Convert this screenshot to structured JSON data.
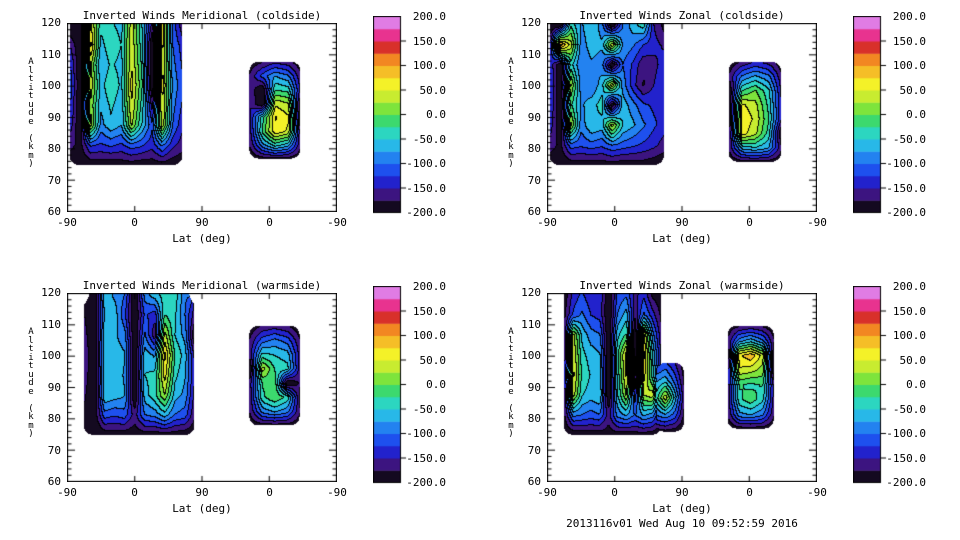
{
  "page": {
    "background": "#ffffff",
    "caption": "2013116v01 Wed Aug 10 09:52:59 2016"
  },
  "axis": {
    "x_label": "Lat (deg)",
    "y_label": "Altitude (km)",
    "x_tick_labels": [
      "-90",
      "0",
      "90",
      "0",
      "-90"
    ],
    "y_tick_labels": [
      "120",
      "110",
      "100",
      "90",
      "80",
      "70",
      "60"
    ],
    "alt_min": 60,
    "alt_max": 120
  },
  "colorbar": {
    "min": -200,
    "max": 200,
    "band_step": 25,
    "tick_labels": [
      "200.0",
      "150.0",
      "100.0",
      "50.0",
      "0.0",
      "-50.0",
      "-100.0",
      "-150.0",
      "-200.0"
    ],
    "colors_low_to_high": [
      "#140a20",
      "#3c1480",
      "#2222cc",
      "#1e50ee",
      "#2382f0",
      "#28b8e8",
      "#2cd6c0",
      "#3cd96e",
      "#7ee43c",
      "#c8ec30",
      "#f4f128",
      "#f5be27",
      "#f28722",
      "#d8302a",
      "#e8338f",
      "#e07ce4"
    ]
  },
  "chart_data": [
    {
      "type": "contour-filled",
      "title": "Inverted Winds Meridional (coldside)",
      "position": "top-left",
      "xlabel": "Lat (deg)",
      "ylabel": "Altitude (km)",
      "x_ticks": [
        "-90",
        "0",
        "90",
        "0",
        "-90"
      ],
      "y_range": [
        60,
        120
      ],
      "value_range": [
        -200,
        200
      ],
      "level_step": 25,
      "blobs": [
        {
          "x0": 0.004,
          "x1": 0.425,
          "alt_top": 120,
          "alt_bottom": 75,
          "values": [
            [
              -205,
              -205,
              55,
              -40,
              -45,
              -60,
              40,
              -50,
              -160,
              70,
              -110,
              -170
            ],
            [
              -150,
              -205,
              85,
              -60,
              -30,
              -50,
              45,
              -40,
              -205,
              60,
              -100,
              -140
            ],
            [
              -120,
              -205,
              30,
              -75,
              -45,
              -60,
              50,
              -30,
              -205,
              55,
              -90,
              -130
            ],
            [
              -110,
              -205,
              45,
              -60,
              -30,
              -55,
              60,
              -20,
              -205,
              62,
              -80,
              -120
            ],
            [
              -120,
              -205,
              20,
              -70,
              -45,
              -65,
              50,
              -35,
              -160,
              55,
              -90,
              -130
            ],
            [
              -135,
              -205,
              40,
              -85,
              -55,
              -75,
              30,
              -50,
              -120,
              45,
              -100,
              -145
            ],
            [
              -165,
              -185,
              -120,
              -130,
              -120,
              -130,
              -110,
              -120,
              -140,
              -95,
              -140,
              -165
            ],
            [
              -198,
              -202,
              -196,
              -192,
              -195,
              -192,
              -190,
              -195,
              -192,
              -190,
              -196,
              -198
            ]
          ]
        },
        {
          "x0": 0.675,
          "x1": 0.865,
          "alt_top": 108,
          "alt_bottom": 77,
          "values": [
            [
              -195,
              -175,
              -155,
              -165,
              -192
            ],
            [
              -170,
              -115,
              -75,
              -95,
              -170
            ],
            [
              -158,
              -205,
              -25,
              -35,
              -160
            ],
            [
              -150,
              -205,
              45,
              28,
              -205
            ],
            [
              -152,
              -35,
              78,
              55,
              -205
            ],
            [
              -160,
              -18,
              70,
              45,
              -180
            ],
            [
              -172,
              -85,
              -40,
              -65,
              -172
            ],
            [
              -196,
              -190,
              -186,
              -190,
              -196
            ]
          ]
        }
      ]
    },
    {
      "type": "contour-filled",
      "title": "Inverted Winds Zonal (coldside)",
      "position": "top-right",
      "xlabel": "Lat (deg)",
      "ylabel": "Altitude (km)",
      "x_ticks": [
        "-90",
        "0",
        "90",
        "0",
        "-90"
      ],
      "y_range": [
        60,
        120
      ],
      "value_range": [
        -200,
        200
      ],
      "level_step": 25,
      "blobs": [
        {
          "x0": 0.004,
          "x1": 0.43,
          "alt_top": 120,
          "alt_bottom": 75,
          "values": [
            [
              -205,
              -205,
              -30,
              -80,
              -50,
              -90,
              -205,
              -100,
              -60,
              -35,
              -150,
              -185
            ],
            [
              -160,
              115,
              40,
              -90,
              -60,
              -70,
              50,
              -80,
              -95,
              -125,
              -140,
              -155
            ],
            [
              -130,
              -205,
              -40,
              -100,
              -80,
              -90,
              -205,
              -100,
              -130,
              -170,
              -160,
              -135
            ],
            [
              -120,
              -205,
              30,
              -90,
              -100,
              -60,
              45,
              -85,
              -140,
              -178,
              -150,
              -125
            ],
            [
              -125,
              -205,
              -20,
              -80,
              -60,
              -40,
              -205,
              -60,
              -90,
              -120,
              -130,
              -128
            ],
            [
              -135,
              -205,
              35,
              -90,
              -50,
              -60,
              40,
              -50,
              -70,
              -95,
              -120,
              -138
            ],
            [
              -160,
              -182,
              -110,
              -120,
              -110,
              -120,
              -100,
              -110,
              -120,
              -130,
              -142,
              -162
            ],
            [
              -198,
              -202,
              -196,
              -192,
              -195,
              -192,
              -190,
              -195,
              -192,
              -190,
              -196,
              -198
            ]
          ]
        },
        {
          "x0": 0.672,
          "x1": 0.868,
          "alt_top": 108,
          "alt_bottom": 76,
          "values": [
            [
              -195,
              -170,
              -145,
              -158,
              -192
            ],
            [
              -172,
              -95,
              -70,
              -92,
              -170
            ],
            [
              -205,
              -25,
              2,
              -42,
              -158
            ],
            [
              -205,
              55,
              35,
              -32,
              -152
            ],
            [
              -205,
              68,
              45,
              -22,
              -152
            ],
            [
              -182,
              62,
              32,
              -35,
              -205
            ],
            [
              -172,
              -65,
              -52,
              -72,
              -172
            ],
            [
              -196,
              -190,
              -186,
              -190,
              -196
            ]
          ]
        }
      ]
    },
    {
      "type": "contour-filled",
      "title": "Inverted Winds Meridional (warmside)",
      "position": "bottom-left",
      "xlabel": "Lat (deg)",
      "ylabel": "Altitude (km)",
      "x_ticks": [
        "-90",
        "0",
        "90",
        "0",
        "-90"
      ],
      "y_range": [
        60,
        120
      ],
      "value_range": [
        -200,
        200
      ],
      "level_step": 25,
      "blobs": [
        {
          "x0": 0.058,
          "x1": 0.47,
          "alt_top": 120,
          "alt_bottom": 75,
          "values": [
            [
              null,
              -205,
              -60,
              -80,
              -100,
              -205,
              -90,
              -60,
              -40,
              -35,
              -95,
              null
            ],
            [
              -175,
              -205,
              -70,
              -60,
              -120,
              -205,
              -120,
              -140,
              -25,
              -45,
              -100,
              -165
            ],
            [
              -165,
              -205,
              -60,
              -70,
              -90,
              -205,
              -95,
              -170,
              35,
              -50,
              -85,
              -205
            ],
            [
              -155,
              -205,
              -50,
              -62,
              -72,
              -205,
              -60,
              -80,
              82,
              -25,
              -62,
              -160
            ],
            [
              -160,
              -205,
              -62,
              -52,
              -80,
              -205,
              -50,
              -42,
              62,
              -42,
              -72,
              -152
            ],
            [
              -170,
              -205,
              -52,
              -62,
              -72,
              -205,
              -62,
              -32,
              25,
              -62,
              -82,
              -162
            ],
            [
              -182,
              -192,
              -112,
              -122,
              -112,
              -162,
              -102,
              -92,
              -62,
              -102,
              -112,
              -172
            ],
            [
              -198,
              -202,
              -196,
              -192,
              -195,
              -192,
              -190,
              -195,
              -190,
              -192,
              -196,
              -198
            ]
          ]
        },
        {
          "x0": 0.675,
          "x1": 0.862,
          "alt_top": 110,
          "alt_bottom": 78,
          "values": [
            [
              -195,
              -172,
              -162,
              -172,
              -195
            ],
            [
              -172,
              -112,
              -92,
              -112,
              -172
            ],
            [
              -162,
              -42,
              -52,
              -62,
              -162
            ],
            [
              -205,
              38,
              -28,
              -42,
              -162
            ],
            [
              -162,
              -22,
              -12,
              -205,
              -172
            ],
            [
              -162,
              -32,
              0,
              -32,
              -182
            ],
            [
              -172,
              -92,
              -72,
              -92,
              -172
            ],
            [
              -196,
              -190,
              -190,
              -190,
              -196
            ]
          ]
        }
      ]
    },
    {
      "type": "contour-filled",
      "title": "Inverted Winds Zonal (warmside)",
      "position": "bottom-right",
      "xlabel": "Lat (deg)",
      "ylabel": "Altitude (km)",
      "x_ticks": [
        "-90",
        "0",
        "90",
        "0",
        "-90"
      ],
      "y_range": [
        60,
        120
      ],
      "value_range": [
        -200,
        200
      ],
      "level_step": 25,
      "blobs": [
        {
          "x0": 0.058,
          "x1": 0.42,
          "alt_top": 120,
          "alt_bottom": 75,
          "values": [
            [
              -192,
              -140,
              -120,
              -145,
              -130,
              -205,
              -120,
              -105,
              -160,
              -130,
              -182,
              -195
            ],
            [
              -180,
              -120,
              -95,
              -125,
              -135,
              -205,
              -100,
              -62,
              -170,
              -95,
              -140,
              -182
            ],
            [
              -170,
              35,
              -58,
              -88,
              -98,
              -205,
              -58,
              -22,
              -205,
              58,
              -88,
              -172
            ],
            [
              -162,
              48,
              -42,
              -62,
              -72,
              -205,
              -32,
              62,
              -205,
              80,
              -52,
              -162
            ],
            [
              -158,
              58,
              -32,
              -52,
              -62,
              -205,
              -42,
              55,
              -180,
              62,
              -42,
              -152
            ],
            [
              -162,
              38,
              -48,
              -62,
              -52,
              -205,
              -52,
              28,
              -140,
              25,
              42,
              -158
            ],
            [
              -178,
              -92,
              -102,
              -112,
              -102,
              -162,
              -92,
              -72,
              -102,
              -72,
              -88,
              -170
            ],
            [
              -198,
              -202,
              -196,
              -192,
              -195,
              -190,
              -192,
              -195,
              -190,
              -192,
              -196,
              -198
            ]
          ]
        },
        {
          "x0": 0.4,
          "x1": 0.505,
          "alt_top": 98,
          "alt_bottom": 76,
          "values": [
            [
              -140,
              -120,
              -150,
              -192
            ],
            [
              -80,
              -60,
              -110,
              -180
            ],
            [
              -40,
              45,
              -60,
              -170
            ],
            [
              -100,
              -80,
              -110,
              -182
            ],
            [
              -192,
              -188,
              -192,
              -198
            ]
          ]
        },
        {
          "x0": 0.668,
          "x1": 0.84,
          "alt_top": 110,
          "alt_bottom": 77,
          "values": [
            [
              -195,
              -178,
              -168,
              -178,
              -195
            ],
            [
              -172,
              -85,
              -60,
              -95,
              -172
            ],
            [
              -205,
              70,
              95,
              40,
              -205
            ],
            [
              -162,
              45,
              35,
              15,
              -205
            ],
            [
              -162,
              -22,
              -32,
              -22,
              -162
            ],
            [
              -162,
              -32,
              -8,
              -42,
              -162
            ],
            [
              -172,
              -82,
              -72,
              -92,
              -172
            ],
            [
              -196,
              -190,
              -190,
              -190,
              -196
            ]
          ]
        }
      ]
    }
  ]
}
